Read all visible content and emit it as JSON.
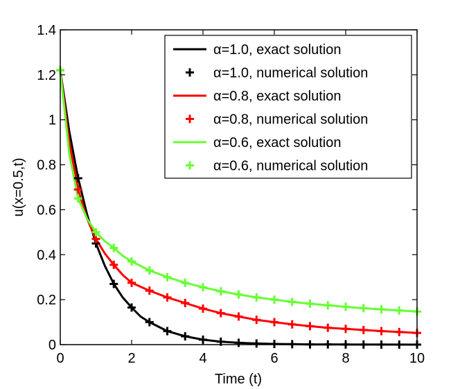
{
  "chart_data": {
    "type": "line",
    "title": "",
    "xlabel": "Time (t)",
    "ylabel": "u(x=0.5,t)",
    "xlim": [
      0,
      10
    ],
    "ylim": [
      0,
      1.4
    ],
    "xticks": [
      0,
      2,
      4,
      6,
      8,
      10
    ],
    "xtick_labels": [
      "0",
      "2",
      "4",
      "6",
      "8",
      "10"
    ],
    "yticks": [
      0,
      0.2,
      0.4,
      0.6,
      0.8,
      1,
      1.2,
      1.4
    ],
    "ytick_labels": [
      "0",
      "0.2",
      "0.4",
      "0.6",
      "0.8",
      "1",
      "1.2",
      "1.4"
    ],
    "grid": false,
    "legend_position": "top-right",
    "series": [
      {
        "name": "α=1.0, exact solution",
        "style": "line",
        "color": "#000000",
        "x": [
          0,
          0.25,
          0.5,
          0.75,
          1,
          1.25,
          1.5,
          1.75,
          2,
          2.25,
          2.5,
          3,
          3.5,
          4,
          4.5,
          5,
          5.5,
          6,
          7,
          8,
          9,
          10
        ],
        "y": [
          1.22,
          0.95,
          0.74,
          0.58,
          0.45,
          0.35,
          0.27,
          0.21,
          0.165,
          0.125,
          0.1,
          0.06,
          0.037,
          0.022,
          0.013,
          0.008,
          0.005,
          0.003,
          0.001,
          0.0005,
          0.0002,
          0.0001
        ]
      },
      {
        "name": "α=1.0, numerical solution",
        "style": "markers",
        "color": "#000000",
        "x": [
          0,
          0.5,
          1,
          1.5,
          2,
          2.5,
          3,
          3.5,
          4,
          4.5,
          5,
          5.5,
          6,
          6.5,
          7,
          7.5,
          8,
          8.5,
          9,
          9.5,
          10
        ],
        "y": [
          1.22,
          0.74,
          0.45,
          0.27,
          0.165,
          0.1,
          0.06,
          0.037,
          0.022,
          0.013,
          0.008,
          0.005,
          0.003,
          0.002,
          0.001,
          0.001,
          0.0005,
          0.0003,
          0.0002,
          0.0001,
          0.0001
        ]
      },
      {
        "name": "α=0.8, exact solution",
        "style": "line",
        "color": "#ff0000",
        "x": [
          0,
          0.25,
          0.5,
          0.75,
          1,
          1.25,
          1.5,
          1.75,
          2,
          2.5,
          3,
          3.5,
          4,
          4.5,
          5,
          5.5,
          6,
          6.5,
          7,
          7.5,
          8,
          8.5,
          9,
          9.5,
          10
        ],
        "y": [
          1.22,
          0.9,
          0.69,
          0.56,
          0.47,
          0.405,
          0.355,
          0.31,
          0.275,
          0.24,
          0.21,
          0.185,
          0.16,
          0.14,
          0.125,
          0.11,
          0.1,
          0.09,
          0.082,
          0.075,
          0.07,
          0.065,
          0.06,
          0.056,
          0.052
        ]
      },
      {
        "name": "α=0.8, numerical solution",
        "style": "markers",
        "color": "#ff0000",
        "x": [
          0,
          0.5,
          1,
          1.5,
          2,
          2.5,
          3,
          3.5,
          4,
          4.5,
          5,
          5.5,
          6,
          6.5,
          7,
          7.5,
          8,
          8.5,
          9,
          9.5,
          10
        ],
        "y": [
          1.22,
          0.69,
          0.47,
          0.355,
          0.275,
          0.24,
          0.21,
          0.185,
          0.16,
          0.14,
          0.125,
          0.11,
          0.1,
          0.09,
          0.082,
          0.075,
          0.07,
          0.065,
          0.06,
          0.056,
          0.052
        ]
      },
      {
        "name": "α=0.6, exact solution",
        "style": "line",
        "color": "#66ff33",
        "x": [
          0,
          0.25,
          0.5,
          0.75,
          1,
          1.25,
          1.5,
          1.75,
          2,
          2.5,
          3,
          3.5,
          4,
          4.5,
          5,
          5.5,
          6,
          6.5,
          7,
          7.5,
          8,
          8.5,
          9,
          9.5,
          10
        ],
        "y": [
          1.22,
          0.85,
          0.65,
          0.56,
          0.5,
          0.46,
          0.43,
          0.395,
          0.37,
          0.33,
          0.3,
          0.275,
          0.255,
          0.237,
          0.223,
          0.21,
          0.2,
          0.19,
          0.182,
          0.175,
          0.168,
          0.162,
          0.157,
          0.152,
          0.147
        ]
      },
      {
        "name": "α=0.6, numerical solution",
        "style": "markers",
        "color": "#66ff33",
        "x": [
          0,
          0.5,
          1,
          1.5,
          2,
          2.5,
          3,
          3.5,
          4,
          4.5,
          5,
          5.5,
          6,
          6.5,
          7,
          7.5,
          8,
          8.5,
          9,
          9.5,
          10
        ],
        "y": [
          1.22,
          0.65,
          0.5,
          0.43,
          0.37,
          0.33,
          0.3,
          0.275,
          0.255,
          0.237,
          0.223,
          0.21,
          0.2,
          0.19,
          0.182,
          0.175,
          0.168,
          0.162,
          0.157,
          0.152,
          0.147
        ]
      }
    ]
  }
}
